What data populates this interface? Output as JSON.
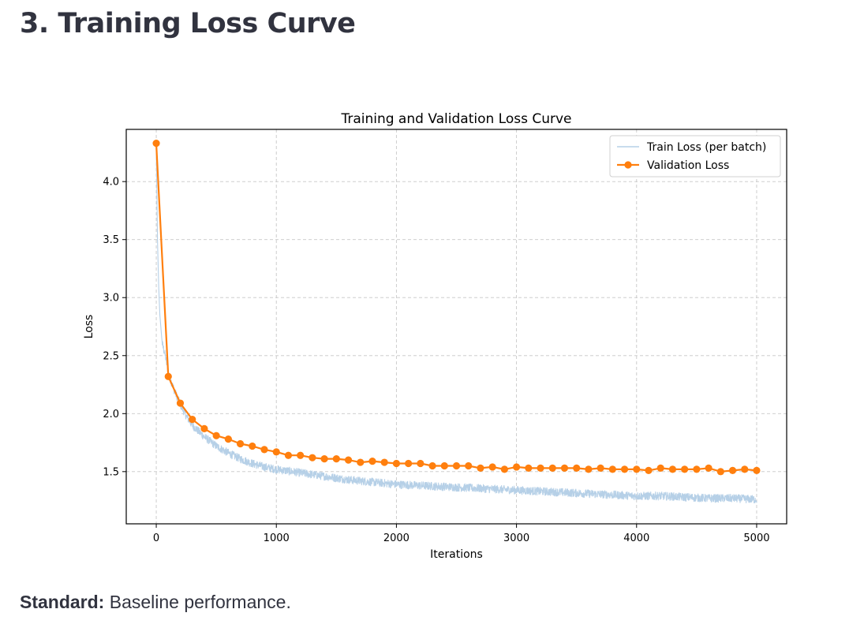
{
  "heading": "3. Training Loss Curve",
  "caption": {
    "label": "Standard:",
    "text": " Baseline performance."
  },
  "colors": {
    "train": "#b6d0e7",
    "validation": "#ff7f0e",
    "grid": "#c8c8c8"
  },
  "chart_data": {
    "type": "line",
    "title": "Training and Validation Loss Curve",
    "xlabel": "Iterations",
    "ylabel": "Loss",
    "xlim": [
      -250,
      5250
    ],
    "ylim": [
      1.05,
      4.45
    ],
    "xticks": [
      0,
      1000,
      2000,
      3000,
      4000,
      5000
    ],
    "xtick_labels": [
      "0",
      "1000",
      "2000",
      "3000",
      "4000",
      "5000"
    ],
    "yticks": [
      1.5,
      2.0,
      2.5,
      3.0,
      3.5,
      4.0
    ],
    "ytick_labels": [
      "1.5",
      "2.0",
      "2.5",
      "3.0",
      "3.5",
      "4.0"
    ],
    "grid": true,
    "legend_position": "top-right",
    "series": [
      {
        "name": "Train Loss (per batch)",
        "style": "line",
        "approximate": true,
        "x": [
          0,
          5,
          10,
          20,
          30,
          50,
          75,
          100,
          150,
          200,
          250,
          300,
          400,
          500,
          600,
          700,
          800,
          900,
          1000,
          1200,
          1400,
          1600,
          1800,
          2000,
          2200,
          2400,
          2600,
          2800,
          3000,
          3200,
          3400,
          3600,
          3800,
          4000,
          4200,
          4400,
          4600,
          4800,
          5000
        ],
        "y": [
          4.3,
          3.9,
          3.5,
          3.1,
          2.85,
          2.6,
          2.5,
          2.35,
          2.2,
          2.08,
          1.98,
          1.9,
          1.8,
          1.72,
          1.66,
          1.61,
          1.57,
          1.54,
          1.52,
          1.49,
          1.46,
          1.43,
          1.41,
          1.39,
          1.38,
          1.37,
          1.36,
          1.35,
          1.34,
          1.33,
          1.32,
          1.31,
          1.3,
          1.29,
          1.29,
          1.28,
          1.27,
          1.27,
          1.26
        ]
      },
      {
        "name": "Validation Loss",
        "style": "line-marker",
        "x": [
          0,
          100,
          200,
          300,
          400,
          500,
          600,
          700,
          800,
          900,
          1000,
          1100,
          1200,
          1300,
          1400,
          1500,
          1600,
          1700,
          1800,
          1900,
          2000,
          2100,
          2200,
          2300,
          2400,
          2500,
          2600,
          2700,
          2800,
          2900,
          3000,
          3100,
          3200,
          3300,
          3400,
          3500,
          3600,
          3700,
          3800,
          3900,
          4000,
          4100,
          4200,
          4300,
          4400,
          4500,
          4600,
          4700,
          4800,
          4900,
          5000
        ],
        "y": [
          4.33,
          2.32,
          2.09,
          1.95,
          1.87,
          1.81,
          1.78,
          1.74,
          1.72,
          1.69,
          1.67,
          1.64,
          1.64,
          1.62,
          1.61,
          1.61,
          1.6,
          1.58,
          1.59,
          1.58,
          1.57,
          1.57,
          1.57,
          1.55,
          1.55,
          1.55,
          1.55,
          1.53,
          1.54,
          1.52,
          1.54,
          1.53,
          1.53,
          1.53,
          1.53,
          1.53,
          1.52,
          1.53,
          1.52,
          1.52,
          1.52,
          1.51,
          1.53,
          1.52,
          1.52,
          1.52,
          1.53,
          1.5,
          1.51,
          1.52,
          1.51
        ]
      }
    ]
  }
}
